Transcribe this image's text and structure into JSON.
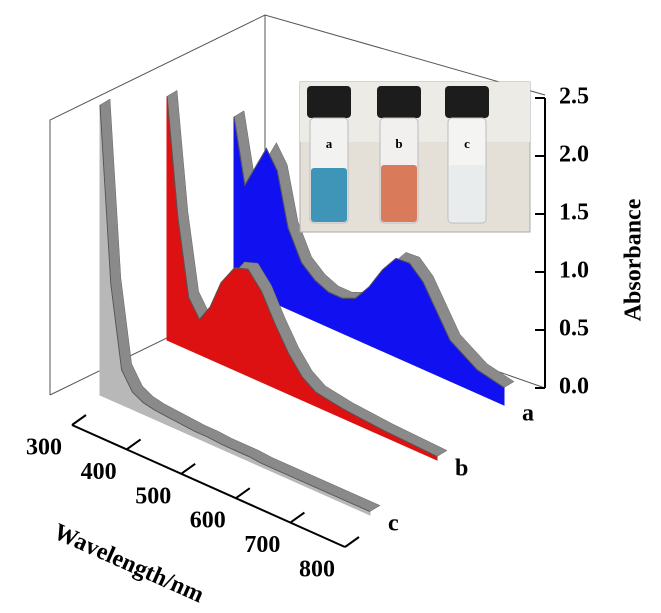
{
  "chart_data": {
    "type": "waterfall",
    "x_label": "Wavelength/nm",
    "y_label": "Absorbance",
    "xlim": [
      300,
      800
    ],
    "xticks": [
      300,
      400,
      500,
      600,
      700,
      800
    ],
    "ylim": [
      0,
      2.5
    ],
    "yticks": [
      {
        "value": 0,
        "label": "0.0"
      },
      0.5,
      {
        "value": 1,
        "label": "1.0"
      },
      1.5,
      {
        "value": 2,
        "label": "2.0"
      },
      2.5
    ],
    "x": [
      300,
      320,
      340,
      360,
      380,
      400,
      425,
      450,
      475,
      500,
      525,
      550,
      575,
      600,
      625,
      650,
      675,
      700,
      750,
      800
    ],
    "series": [
      {
        "name": "a",
        "color": "#1010f0",
        "values": [
          1.45,
          0.9,
          1.1,
          1.3,
          1.15,
          0.7,
          0.45,
          0.35,
          0.3,
          0.3,
          0.35,
          0.5,
          0.7,
          0.85,
          0.86,
          0.75,
          0.55,
          0.35,
          0.2,
          0.15
        ]
      },
      {
        "name": "b",
        "color": "#dd1111",
        "values": [
          2.1,
          1.1,
          0.45,
          0.3,
          0.45,
          0.7,
          0.88,
          0.92,
          0.78,
          0.55,
          0.35,
          0.2,
          0.12,
          0.1,
          0.08,
          0.07,
          0.06,
          0.05,
          0.04,
          0.03
        ]
      },
      {
        "name": "c",
        "color": "#b8b8b8",
        "values": [
          2.5,
          1.0,
          0.3,
          0.15,
          0.1,
          0.08,
          0.07,
          0.06,
          0.05,
          0.05,
          0.04,
          0.04,
          0.04,
          0.03,
          0.03,
          0.03,
          0.03,
          0.03,
          0.03,
          0.03
        ]
      }
    ]
  }
}
